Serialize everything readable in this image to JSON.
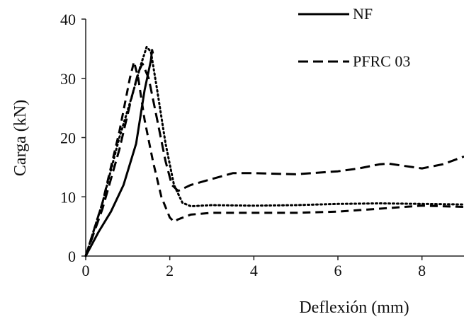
{
  "chart_data": {
    "type": "line",
    "xlabel": "Deflexión (mm)",
    "ylabel": "Carga (kN)",
    "xlim": [
      0,
      9
    ],
    "ylim": [
      0,
      40
    ],
    "xticks": [
      0,
      2,
      4,
      6,
      8
    ],
    "yticks": [
      0,
      10,
      20,
      30,
      40
    ],
    "grid": false,
    "legend_position": "top-right",
    "series": [
      {
        "name": "NF",
        "style": "solid",
        "x": [
          0,
          0.3,
          0.6,
          0.9,
          1.2,
          1.4,
          1.55,
          1.58,
          1.6
        ],
        "y": [
          0,
          4,
          7.5,
          12,
          19,
          28,
          33,
          34.8,
          34.2
        ]
      },
      {
        "name": "PFRC 03",
        "style": "dashed-long",
        "x": [
          0,
          0.4,
          0.8,
          1.1,
          1.25,
          1.35,
          1.5,
          1.7,
          1.9,
          2.05,
          2.2,
          2.5,
          3.0,
          3.5,
          4.0,
          5.0,
          6.0,
          6.5,
          7.0,
          7.2,
          7.5,
          8.0,
          8.5,
          9.0
        ],
        "y": [
          0,
          8,
          18,
          27,
          31,
          32.5,
          30,
          23,
          16,
          12,
          11,
          12,
          13,
          14,
          14,
          13.8,
          14.3,
          14.8,
          15.5,
          15.6,
          15.3,
          14.8,
          15.5,
          16.8
        ]
      },
      {
        "style": "dashed-medium",
        "x": [
          0,
          0.4,
          0.8,
          1.05,
          1.15,
          1.25,
          1.4,
          1.6,
          1.8,
          2.0,
          2.1,
          2.2,
          2.5,
          3.0,
          4.0,
          5.0,
          6.0,
          7.0,
          8.0,
          9.0
        ],
        "y": [
          0,
          9,
          21,
          30,
          32.8,
          30,
          23,
          16,
          10,
          6.5,
          5.8,
          6.2,
          7,
          7.3,
          7.3,
          7.3,
          7.5,
          8,
          8.5,
          8.3
        ]
      },
      {
        "style": "dotted",
        "x": [
          0,
          0.4,
          0.8,
          1.1,
          1.3,
          1.45,
          1.55,
          1.7,
          1.9,
          2.1,
          2.3,
          2.5,
          3.0,
          4.0,
          5.0,
          6.0,
          7.0,
          8.0,
          9.0
        ],
        "y": [
          0,
          9,
          20,
          27,
          32,
          35.3,
          34.5,
          28,
          19,
          12,
          9,
          8.4,
          8.6,
          8.5,
          8.6,
          8.8,
          8.9,
          8.8,
          8.7
        ]
      }
    ]
  }
}
